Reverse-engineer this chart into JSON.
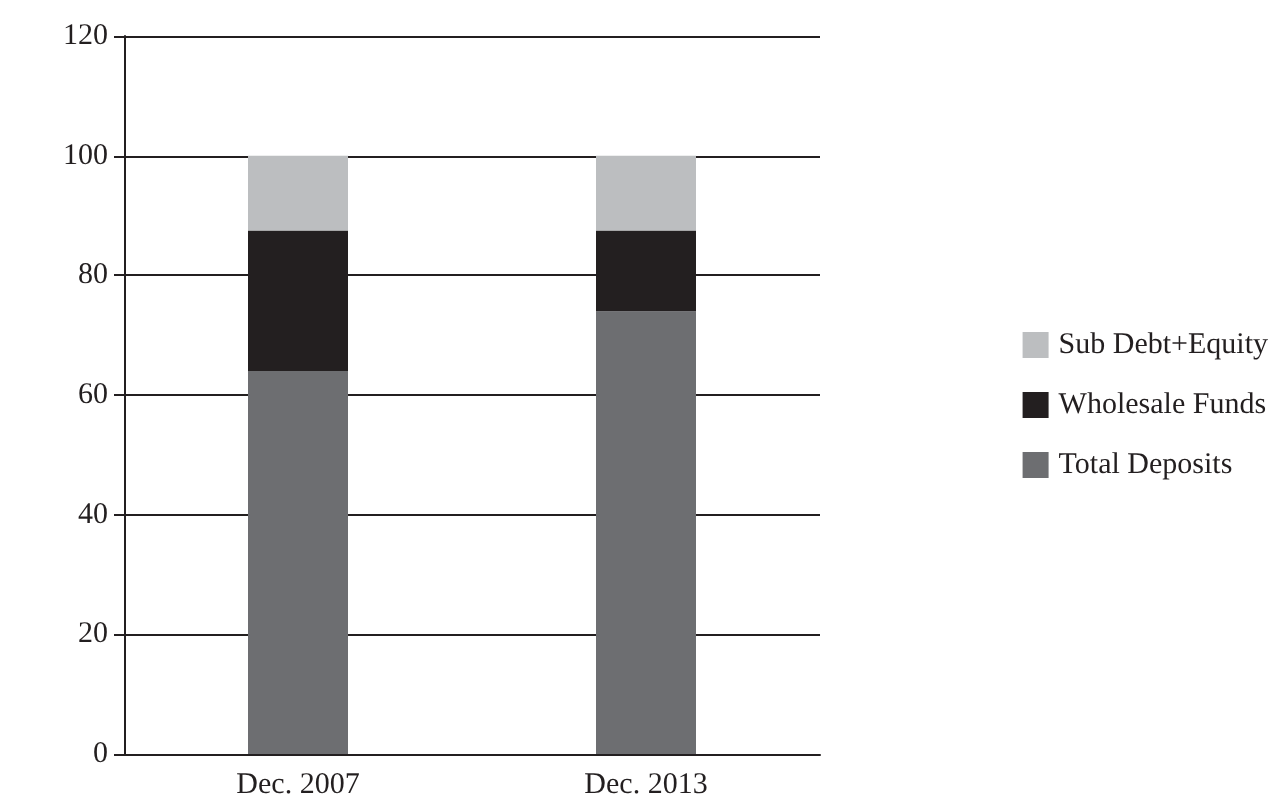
{
  "chart_data": {
    "type": "bar",
    "stacked": true,
    "categories": [
      "Dec. 2007",
      "Dec. 2013"
    ],
    "series": [
      {
        "name": "Total Deposits",
        "color": "#6d6e71",
        "values": [
          64,
          74
        ]
      },
      {
        "name": "Wholesale Funds",
        "color": "#231f20",
        "values": [
          23.5,
          13.5
        ]
      },
      {
        "name": "Sub Debt+Equity",
        "color": "#bcbec0",
        "values": [
          12.5,
          12.5
        ]
      }
    ],
    "ylim": [
      0,
      120
    ],
    "yticks": [
      0,
      20,
      40,
      60,
      80,
      100,
      120
    ],
    "grid": "y",
    "legend": "right"
  }
}
